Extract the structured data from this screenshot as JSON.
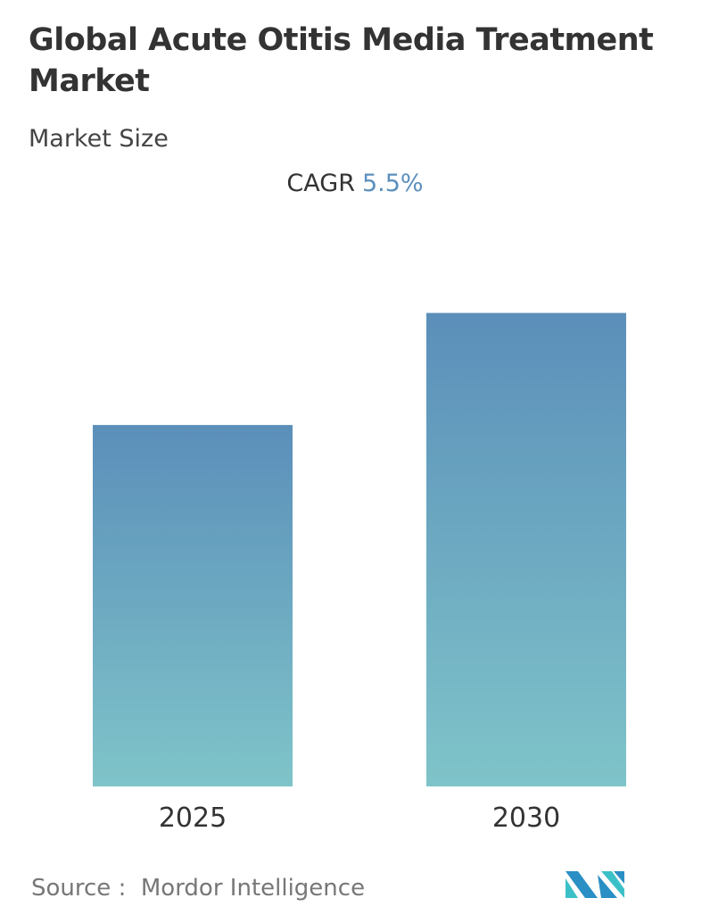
{
  "header": {
    "title": "Global Acute Otitis Media Treatment Market",
    "subtitle": "Market Size",
    "cagr_label": "CAGR",
    "cagr_value": "5.5%"
  },
  "chart_data": {
    "type": "bar",
    "categories": [
      "2025",
      "2030"
    ],
    "values": [
      1.0,
      1.31
    ],
    "ylim": [
      0,
      1.43
    ],
    "grid": false,
    "colors": {
      "bar_top": "#5b8fba",
      "bar_bottom": "#7fc4c9"
    },
    "title": "",
    "xlabel": "",
    "ylabel": ""
  },
  "footer": {
    "source_label": "Source :",
    "source_name": "Mordor Intelligence",
    "logo_text": "Mordor Intelligence"
  }
}
